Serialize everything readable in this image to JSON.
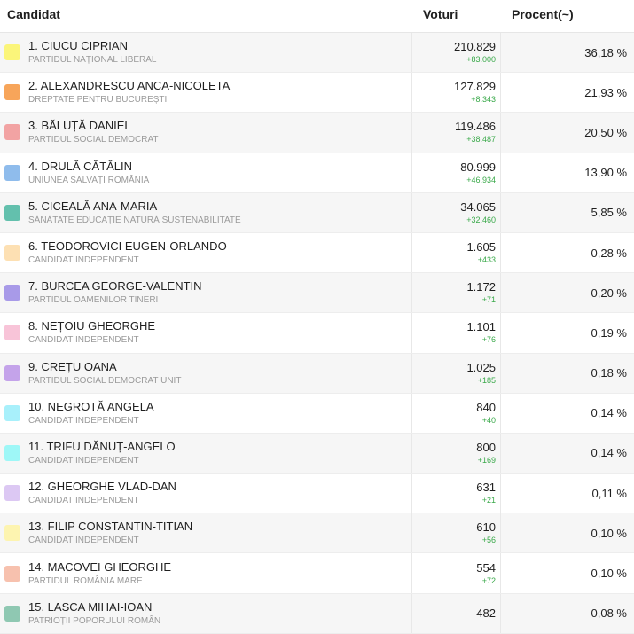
{
  "header": {
    "candidat": "Candidat",
    "voturi": "Voturi",
    "procent": "Procent(~)"
  },
  "rows": [
    {
      "name": "1. CIUCU CIPRIAN",
      "party": "PARTIDUL NAȚIONAL LIBERAL",
      "votes": "210.829",
      "delta": "+83.000",
      "percent": "36,18 %",
      "color": "#fbf57a"
    },
    {
      "name": "2. ALEXANDRESCU ANCA-NICOLETA",
      "party": "DREPTATE PENTRU BUCUREȘTI",
      "votes": "127.829",
      "delta": "+8.343",
      "percent": "21,93 %",
      "color": "#f7a55a"
    },
    {
      "name": "3. BĂLUȚĂ DANIEL",
      "party": "PARTIDUL SOCIAL DEMOCRAT",
      "votes": "119.486",
      "delta": "+38.487",
      "percent": "20,50 %",
      "color": "#f2a3a3"
    },
    {
      "name": "4. DRULĂ CĂTĂLIN",
      "party": "UNIUNEA SALVAȚI ROMÂNIA",
      "votes": "80.999",
      "delta": "+46.934",
      "percent": "13,90 %",
      "color": "#8fbcec"
    },
    {
      "name": "5. CICEALĂ ANA-MARIA",
      "party": "SĂNĂTATE EDUCAȚIE NATURĂ SUSTENABILITATE",
      "votes": "34.065",
      "delta": "+32.460",
      "percent": "5,85 %",
      "color": "#63c0ad"
    },
    {
      "name": "6. TEODOROVICI EUGEN-ORLANDO",
      "party": "CANDIDAT INDEPENDENT",
      "votes": "1.605",
      "delta": "+433",
      "percent": "0,28 %",
      "color": "#fde0b3"
    },
    {
      "name": "7. BURCEA GEORGE-VALENTIN",
      "party": "PARTIDUL OAMENILOR TINERI",
      "votes": "1.172",
      "delta": "+71",
      "percent": "0,20 %",
      "color": "#a89ae8"
    },
    {
      "name": "8. NEȚOIU GHEORGHE",
      "party": "CANDIDAT INDEPENDENT",
      "votes": "1.101",
      "delta": "+76",
      "percent": "0,19 %",
      "color": "#f8c4d8"
    },
    {
      "name": "9. CREȚU OANA",
      "party": "PARTIDUL SOCIAL DEMOCRAT UNIT",
      "votes": "1.025",
      "delta": "+185",
      "percent": "0,18 %",
      "color": "#c4a3ea"
    },
    {
      "name": "10. NEGROTĂ ANGELA",
      "party": "CANDIDAT INDEPENDENT",
      "votes": "840",
      "delta": "+40",
      "percent": "0,14 %",
      "color": "#a8f0fb"
    },
    {
      "name": "11. TRIFU DĂNUȚ-ANGELO",
      "party": "CANDIDAT INDEPENDENT",
      "votes": "800",
      "delta": "+169",
      "percent": "0,14 %",
      "color": "#9ef7f7"
    },
    {
      "name": "12. GHEORGHE VLAD-DAN",
      "party": "CANDIDAT INDEPENDENT",
      "votes": "631",
      "delta": "+21",
      "percent": "0,11 %",
      "color": "#dcc8f3"
    },
    {
      "name": "13. FILIP CONSTANTIN-TITIAN",
      "party": "CANDIDAT INDEPENDENT",
      "votes": "610",
      "delta": "+56",
      "percent": "0,10 %",
      "color": "#fdf4b0"
    },
    {
      "name": "14. MACOVEI GHEORGHE",
      "party": "PARTIDUL ROMÂNIA MARE",
      "votes": "554",
      "delta": "+72",
      "percent": "0,10 %",
      "color": "#f7c1ae"
    },
    {
      "name": "15. LASCA MIHAI-IOAN",
      "party": "PATRIOȚII POPORULUI ROMÂN",
      "votes": "482",
      "delta": "",
      "percent": "0,08 %",
      "color": "#8fc8b2"
    }
  ]
}
